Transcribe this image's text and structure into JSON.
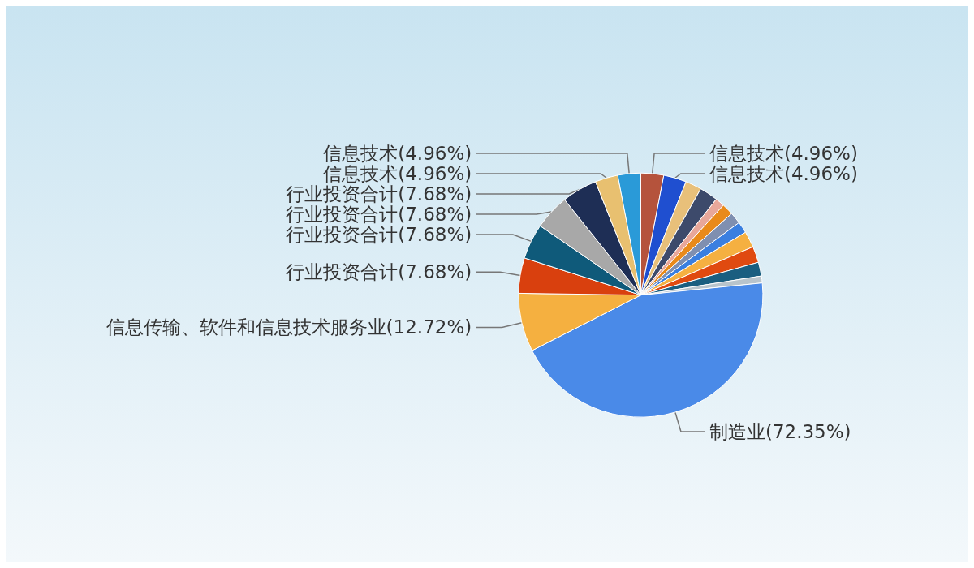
{
  "chart_data": {
    "type": "pie",
    "categories": [
      "信息技术(4.96%)",
      "信息技术(4.96%)",
      null,
      null,
      null,
      null,
      null,
      null,
      null,
      null,
      null,
      null,
      "制造业(72.35%)",
      "信息传输、软件和信息技术服务业(12.72%)",
      "行业投资合计(7.68%)",
      "行业投资合计(7.68%)",
      "行业投资合计(7.68%)",
      "行业投资合计(7.68%)",
      "信息技术(4.96%)",
      "信息技术(4.96%)"
    ],
    "values": [
      4.96,
      4.96,
      3.5,
      4.0,
      2.0,
      2.5,
      2.5,
      2.5,
      3.5,
      3.5,
      3.0,
      1.5,
      72.35,
      12.72,
      7.68,
      7.68,
      7.68,
      7.68,
      4.96,
      4.96
    ],
    "colors": [
      "#b5533c",
      "#1f4fd0",
      "#e8c07a",
      "#3d4a6b",
      "#e8a79a",
      "#e98a1a",
      "#7f8fb0",
      "#3a7fe0",
      "#f5b041",
      "#e04a10",
      "#1a5e80",
      "#b8c4cc",
      "#4a8ae8",
      "#f5b040",
      "#d9400e",
      "#0f5a7a",
      "#a8a8a8",
      "#1e2e55",
      "#e8c070",
      "#2a9ad8"
    ],
    "legend": false
  }
}
